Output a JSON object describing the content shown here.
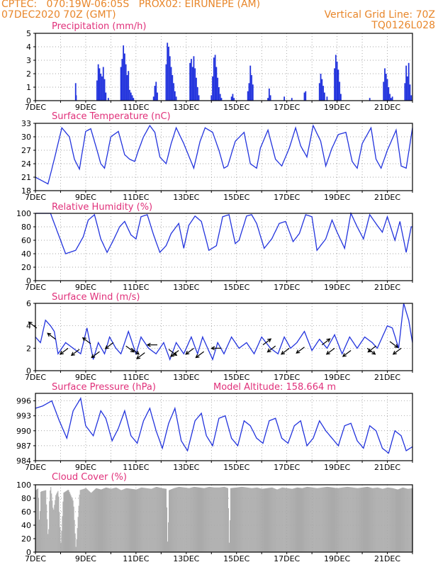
{
  "header": {
    "line1_left": "CPTEC:   070:19W-06:05S   PROX02: EIRUNEPE (AM)",
    "line2_left": "07DEC2020 70Z (GMT)",
    "line2_right": "Vertical Grid Line: 70Z",
    "line3_right": "TQ0126L028"
  },
  "colors": {
    "header": "#e8862a",
    "panel_title": "#e0307a",
    "line": "#2233dd",
    "cloud": "#aaaaaa",
    "arrow": "#000000"
  },
  "x_labels": [
    "7DEC",
    "9DEC",
    "11DEC",
    "13DEC",
    "15DEC",
    "17DEC",
    "19DEC",
    "21DEC"
  ],
  "chart_data": [
    {
      "type": "bar",
      "title": "Precipitation (mm/h)",
      "x_range_days": [
        7,
        22
      ],
      "ylim": [
        0,
        5
      ],
      "yticks": [
        0,
        1,
        2,
        3,
        4,
        5
      ],
      "x": [
        8.6,
        8.62,
        9.45,
        9.5,
        9.55,
        9.6,
        9.65,
        9.7,
        9.75,
        9.8,
        9.9,
        10.4,
        10.45,
        10.5,
        10.55,
        10.6,
        10.65,
        10.7,
        10.75,
        10.8,
        10.85,
        10.9,
        11.7,
        11.75,
        11.8,
        11.85,
        12.2,
        12.25,
        12.3,
        12.35,
        12.4,
        12.45,
        12.5,
        12.55,
        12.6,
        13.15,
        13.2,
        13.25,
        13.3,
        13.35,
        13.4,
        13.45,
        13.5,
        14.0,
        14.05,
        14.1,
        14.15,
        14.2,
        14.25,
        14.3,
        14.35,
        14.4,
        14.8,
        14.85,
        14.9,
        15.45,
        15.5,
        15.55,
        15.6,
        15.65,
        16.25,
        16.3,
        16.35,
        16.9,
        17.2,
        17.7,
        17.75,
        18.3,
        18.35,
        18.4,
        18.45,
        18.5,
        18.6,
        18.9,
        18.95,
        19.0,
        19.05,
        19.1,
        19.15,
        20.3,
        20.85,
        20.9,
        20.95,
        21.0,
        21.05,
        21.1,
        21.15,
        21.2,
        21.7,
        21.75,
        21.8,
        21.85,
        21.9,
        21.95
      ],
      "values": [
        1.3,
        0.4,
        1.5,
        2.7,
        2.4,
        2.0,
        1.8,
        2.5,
        1.6,
        0.6,
        0.2,
        2.5,
        3.1,
        4.1,
        3.5,
        2.7,
        1.9,
        2.2,
        0.8,
        0.6,
        0.4,
        0.2,
        0.3,
        1.1,
        1.4,
        0.6,
        2.7,
        4.3,
        4.0,
        3.3,
        2.5,
        1.9,
        1.3,
        0.7,
        0.3,
        2.8,
        3.1,
        2.5,
        3.3,
        2.4,
        1.7,
        1.0,
        0.4,
        0.4,
        1.8,
        3.2,
        3.4,
        2.5,
        1.7,
        1.0,
        0.5,
        0.2,
        0.3,
        0.5,
        0.2,
        0.7,
        1.3,
        2.6,
        1.9,
        1.2,
        0.2,
        0.9,
        0.4,
        0.3,
        0.2,
        0.6,
        0.7,
        1.3,
        2.0,
        1.6,
        1.1,
        0.6,
        0.3,
        2.4,
        3.4,
        2.9,
        2.3,
        1.4,
        0.5,
        0.2,
        1.4,
        2.4,
        2.0,
        1.6,
        1.0,
        0.5,
        0.2,
        0.3,
        1.3,
        2.6,
        1.8,
        2.8,
        1.2,
        0.4
      ]
    },
    {
      "type": "line",
      "title": "Surface Temperature (nC)",
      "x_range_days": [
        7,
        22
      ],
      "ylim": [
        18,
        33
      ],
      "yticks": [
        18,
        21,
        24,
        27,
        30,
        33
      ],
      "keys_x": [
        7.0,
        7.5,
        7.75,
        8.05,
        8.35,
        8.55,
        8.75,
        9.0,
        9.2,
        9.4,
        9.6,
        9.75,
        10.0,
        10.3,
        10.55,
        10.75,
        10.95,
        11.1,
        11.3,
        11.55,
        11.75,
        11.95,
        12.2,
        12.4,
        12.6,
        12.9,
        13.3,
        13.55,
        13.75,
        14.05,
        14.3,
        14.5,
        14.65,
        14.95,
        15.3,
        15.55,
        15.8,
        15.95,
        16.25,
        16.55,
        16.8,
        17.1,
        17.35,
        17.55,
        17.8,
        18.05,
        18.35,
        18.55,
        18.8,
        19.05,
        19.35,
        19.6,
        19.8,
        20.0,
        20.35,
        20.55,
        20.75,
        21.0,
        21.35,
        21.55,
        21.75,
        22.0
      ],
      "keys_y": [
        21.0,
        19.5,
        25.0,
        32.0,
        30.0,
        25.0,
        22.8,
        31.2,
        31.8,
        28.0,
        24.0,
        23.0,
        30.0,
        31.2,
        26.0,
        25.0,
        24.5,
        27.0,
        30.0,
        32.5,
        31.0,
        25.5,
        24.0,
        28.5,
        32.0,
        28.5,
        23.0,
        29.0,
        32.0,
        31.0,
        27.0,
        23.0,
        23.5,
        29.0,
        31.0,
        24.0,
        23.0,
        27.5,
        31.5,
        25.0,
        23.5,
        27.5,
        32.0,
        28.0,
        25.5,
        32.5,
        29.0,
        23.5,
        27.5,
        30.5,
        31.0,
        24.5,
        23.0,
        28.5,
        32.0,
        25.0,
        23.0,
        27.0,
        31.5,
        23.5,
        23.0,
        32.0
      ]
    },
    {
      "type": "line",
      "title": "Relative Humidity (%)",
      "x_range_days": [
        7,
        22
      ],
      "ylim": [
        0,
        100
      ],
      "yticks": [
        0,
        20,
        40,
        60,
        80,
        100
      ],
      "keys_x": [
        7.0,
        7.6,
        7.9,
        8.2,
        8.6,
        8.9,
        9.1,
        9.35,
        9.6,
        9.85,
        10.1,
        10.35,
        10.55,
        10.8,
        11.0,
        11.2,
        11.45,
        11.7,
        11.95,
        12.2,
        12.4,
        12.7,
        12.9,
        13.1,
        13.35,
        13.6,
        13.9,
        14.2,
        14.45,
        14.7,
        14.95,
        15.1,
        15.4,
        15.6,
        15.8,
        16.1,
        16.4,
        16.7,
        16.95,
        17.25,
        17.5,
        17.75,
        18.0,
        18.2,
        18.55,
        18.8,
        19.0,
        19.3,
        19.55,
        19.8,
        20.05,
        20.3,
        20.6,
        20.8,
        21.0,
        21.3,
        21.5,
        21.75,
        21.95
      ],
      "keys_y": [
        100,
        100,
        70,
        40,
        45,
        65,
        90,
        98,
        62,
        42,
        60,
        80,
        88,
        68,
        62,
        95,
        98,
        68,
        42,
        52,
        70,
        85,
        48,
        82,
        96,
        88,
        45,
        52,
        95,
        98,
        55,
        60,
        96,
        98,
        85,
        48,
        62,
        85,
        88,
        58,
        70,
        98,
        95,
        45,
        62,
        90,
        72,
        48,
        100,
        80,
        62,
        98,
        82,
        72,
        95,
        60,
        88,
        42,
        80
      ]
    },
    {
      "type": "line",
      "title": "Surface Wind (m/s)",
      "x_range_days": [
        7,
        22
      ],
      "ylim": [
        0,
        6
      ],
      "yticks": [
        0,
        2,
        4,
        6
      ],
      "keys_x": [
        7.0,
        7.2,
        7.4,
        7.6,
        7.75,
        7.9,
        8.05,
        8.2,
        8.5,
        8.8,
        9.05,
        9.3,
        9.5,
        9.75,
        9.95,
        10.2,
        10.4,
        10.7,
        11.0,
        11.2,
        11.5,
        11.8,
        12.1,
        12.35,
        12.6,
        12.9,
        13.2,
        13.45,
        13.65,
        13.85,
        14.05,
        14.25,
        14.5,
        14.8,
        15.1,
        15.4,
        15.7,
        16.0,
        16.35,
        16.65,
        16.9,
        17.15,
        17.4,
        17.7,
        18.0,
        18.3,
        18.6,
        18.9,
        19.2,
        19.5,
        19.8,
        20.1,
        20.4,
        20.6,
        20.8,
        21.0,
        21.2,
        21.45,
        21.65,
        21.85,
        22.0
      ],
      "keys_y": [
        3.0,
        2.5,
        4.5,
        4.0,
        3.5,
        1.5,
        2.0,
        2.5,
        2.0,
        1.5,
        3.8,
        1.0,
        2.5,
        1.5,
        3.0,
        2.0,
        1.5,
        3.5,
        1.5,
        3.0,
        2.0,
        1.5,
        2.5,
        1.0,
        2.5,
        1.5,
        3.0,
        1.5,
        3.0,
        2.0,
        1.0,
        2.5,
        1.5,
        3.0,
        2.0,
        2.5,
        1.5,
        3.0,
        2.0,
        1.5,
        3.0,
        2.0,
        2.5,
        3.5,
        1.8,
        2.8,
        2.0,
        3.2,
        1.5,
        3.0,
        2.0,
        3.0,
        2.5,
        2.0,
        3.0,
        4.0,
        3.8,
        2.0,
        6.0,
        4.5,
        2.5
      ],
      "arrows": [
        {
          "day": 7.05,
          "speed": 3.8,
          "dir": "nw"
        },
        {
          "day": 7.8,
          "speed": 2.8,
          "dir": "nw"
        },
        {
          "day": 8.3,
          "speed": 2.0,
          "dir": "sw"
        },
        {
          "day": 8.75,
          "speed": 1.9,
          "dir": "sw"
        },
        {
          "day": 9.2,
          "speed": 2.4,
          "dir": "nw"
        },
        {
          "day": 9.55,
          "speed": 1.7,
          "dir": "sw"
        },
        {
          "day": 10.1,
          "speed": 2.5,
          "dir": "sw"
        },
        {
          "day": 10.6,
          "speed": 2.2,
          "dir": "se"
        },
        {
          "day": 10.8,
          "speed": 2.0,
          "dir": "se"
        },
        {
          "day": 11.35,
          "speed": 1.6,
          "dir": "sw"
        },
        {
          "day": 11.85,
          "speed": 2.3,
          "dir": "w"
        },
        {
          "day": 12.3,
          "speed": 1.9,
          "dir": "se"
        },
        {
          "day": 12.7,
          "speed": 1.8,
          "dir": "sw"
        },
        {
          "day": 13.3,
          "speed": 2.0,
          "dir": "sw"
        },
        {
          "day": 13.7,
          "speed": 1.7,
          "dir": "sw"
        },
        {
          "day": 14.4,
          "speed": 2.0,
          "dir": "w"
        },
        {
          "day": 16.05,
          "speed": 2.3,
          "dir": "ne"
        },
        {
          "day": 16.55,
          "speed": 2.2,
          "dir": "sw"
        },
        {
          "day": 17.1,
          "speed": 2.0,
          "dir": "sw"
        },
        {
          "day": 17.7,
          "speed": 2.1,
          "dir": "sw"
        },
        {
          "day": 18.4,
          "speed": 2.3,
          "dir": "ne"
        },
        {
          "day": 18.9,
          "speed": 2.0,
          "dir": "sw"
        },
        {
          "day": 19.55,
          "speed": 1.8,
          "dir": "sw"
        },
        {
          "day": 20.2,
          "speed": 2.0,
          "dir": "se"
        },
        {
          "day": 20.55,
          "speed": 2.2,
          "dir": "sw"
        },
        {
          "day": 21.1,
          "speed": 2.6,
          "dir": "se"
        },
        {
          "day": 21.55,
          "speed": 2.0,
          "dir": "sw"
        }
      ]
    },
    {
      "type": "line",
      "title": "Surface Pressure (hPa)",
      "annotation": "Model Altitude: 158.664 m",
      "x_range_days": [
        7,
        22
      ],
      "ylim": [
        984,
        997.5
      ],
      "yticks": [
        984,
        987,
        990,
        993,
        996
      ],
      "keys_x": [
        7.0,
        7.3,
        7.65,
        7.95,
        8.25,
        8.5,
        8.8,
        9.0,
        9.3,
        9.6,
        9.8,
        10.05,
        10.3,
        10.55,
        10.8,
        11.05,
        11.3,
        11.55,
        11.8,
        12.05,
        12.3,
        12.55,
        12.8,
        13.05,
        13.35,
        13.6,
        13.8,
        14.05,
        14.3,
        14.55,
        14.8,
        15.05,
        15.3,
        15.55,
        15.8,
        16.05,
        16.3,
        16.55,
        16.8,
        17.05,
        17.3,
        17.55,
        17.8,
        18.05,
        18.3,
        18.55,
        18.8,
        19.05,
        19.3,
        19.55,
        19.8,
        20.05,
        20.3,
        20.55,
        20.8,
        21.05,
        21.3,
        21.55,
        21.75,
        22.0
      ],
      "keys_y": [
        994.5,
        995.0,
        996.0,
        992.0,
        988.5,
        994.0,
        996.5,
        991.0,
        989.0,
        994.0,
        992.5,
        988.0,
        990.5,
        994.0,
        989.0,
        987.5,
        992.0,
        994.5,
        990.0,
        986.5,
        991.5,
        994.5,
        988.0,
        986.0,
        992.0,
        993.5,
        989.0,
        987.0,
        992.5,
        993.0,
        988.5,
        987.0,
        992.0,
        991.0,
        988.5,
        987.5,
        992.0,
        992.5,
        988.5,
        987.5,
        991.0,
        992.0,
        987.0,
        988.5,
        992.0,
        990.0,
        988.5,
        987.0,
        991.0,
        991.5,
        988.0,
        986.5,
        991.0,
        990.0,
        986.5,
        985.5,
        990.0,
        989.0,
        986.0,
        986.8
      ]
    },
    {
      "type": "area",
      "title": "Cloud Cover (%)",
      "x_range_days": [
        7,
        22
      ],
      "ylim": [
        0,
        100
      ],
      "yticks": [
        0,
        20,
        40,
        60,
        80,
        100
      ],
      "keys_x": [
        7.0,
        7.1,
        7.15,
        7.2,
        7.4,
        7.5,
        7.55,
        7.6,
        7.7,
        7.8,
        7.9,
        8.0,
        8.1,
        8.3,
        8.5,
        8.6,
        8.75,
        9.0,
        9.2,
        9.4,
        9.6,
        9.8,
        10.0,
        10.2,
        10.4,
        10.6,
        10.8,
        11.0,
        11.2,
        11.4,
        11.6,
        11.8,
        12.0,
        12.2,
        12.25,
        12.3,
        12.5,
        12.7,
        12.9,
        13.1,
        13.3,
        13.5,
        13.7,
        13.9,
        14.1,
        14.3,
        14.5,
        14.65,
        14.7,
        14.75,
        15.0,
        15.2,
        15.4,
        15.6,
        15.8,
        16.0,
        16.2,
        16.4,
        16.6,
        16.8,
        17.0,
        17.2,
        17.4,
        17.6,
        17.8,
        18.0,
        18.2,
        18.4,
        18.6,
        18.8,
        19.0,
        19.2,
        19.4,
        19.6,
        19.8,
        20.0,
        20.2,
        20.4,
        20.6,
        20.8,
        21.0,
        21.2,
        21.4,
        21.6,
        21.8,
        22.0
      ],
      "keys_y": [
        92,
        95,
        40,
        90,
        92,
        15,
        88,
        97,
        60,
        85,
        92,
        12,
        88,
        93,
        75,
        5,
        92,
        95,
        88,
        95,
        93,
        96,
        94,
        96,
        92,
        95,
        94,
        93,
        96,
        95,
        94,
        97,
        95,
        94,
        5,
        92,
        95,
        97,
        96,
        95,
        97,
        96,
        95,
        97,
        96,
        96,
        97,
        95,
        5,
        95,
        96,
        97,
        96,
        95,
        96,
        94,
        95,
        96,
        93,
        96,
        95,
        94,
        96,
        95,
        97,
        96,
        95,
        96,
        97,
        96,
        95,
        96,
        97,
        96,
        95,
        96,
        97,
        95,
        96,
        94,
        96,
        95,
        93,
        96,
        94,
        95
      ]
    }
  ]
}
